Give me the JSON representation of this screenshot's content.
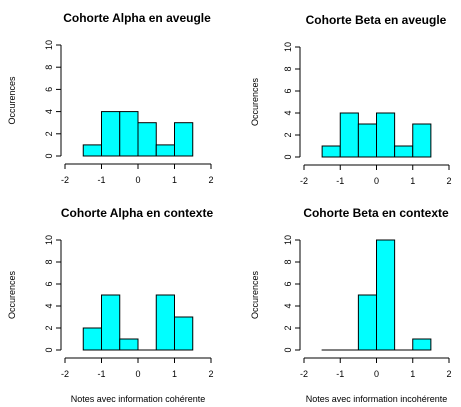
{
  "colors": {
    "bar_fill": "#00FFFF",
    "bar_stroke": "#000000",
    "background": "#FFFFFF"
  },
  "chart_data": [
    {
      "type": "bar",
      "title": "Cohorte Alpha en aveugle",
      "xlabel": "",
      "ylabel": "Occurences",
      "bin_edges": [
        -1.5,
        -1.0,
        -0.5,
        0.0,
        0.5,
        1.0,
        1.5
      ],
      "values": [
        1,
        4,
        4,
        3,
        1,
        3
      ],
      "xlim": [
        -2,
        2
      ],
      "ylim": [
        0,
        10
      ],
      "xticks": [
        "-2",
        "-1",
        "0",
        "1",
        "2"
      ],
      "yticks": [
        "0",
        "2",
        "4",
        "6",
        "8",
        "10"
      ],
      "grid": false
    },
    {
      "type": "bar",
      "title": "Cohorte Beta en aveugle",
      "xlabel": "",
      "ylabel": "Occurences",
      "bin_edges": [
        -1.5,
        -1.0,
        -0.5,
        0.0,
        0.5,
        1.0,
        1.5
      ],
      "values": [
        1,
        4,
        3,
        4,
        1,
        3
      ],
      "xlim": [
        -2,
        2
      ],
      "ylim": [
        0,
        10
      ],
      "xticks": [
        "-2",
        "-1",
        "0",
        "1",
        "2"
      ],
      "yticks": [
        "0",
        "2",
        "4",
        "6",
        "8",
        "10"
      ],
      "grid": false
    },
    {
      "type": "bar",
      "title": "Cohorte Alpha en contexte",
      "xlabel": "Notes avec information cohérente",
      "ylabel": "Occurences",
      "bin_edges": [
        -1.5,
        -1.0,
        -0.5,
        0.0,
        0.5,
        1.0,
        1.5
      ],
      "values": [
        2,
        5,
        1,
        0,
        5,
        3
      ],
      "xlim": [
        -2,
        2
      ],
      "ylim": [
        0,
        10
      ],
      "xticks": [
        "-2",
        "-1",
        "0",
        "1",
        "2"
      ],
      "yticks": [
        "0",
        "2",
        "4",
        "6",
        "8",
        "10"
      ],
      "grid": false
    },
    {
      "type": "bar",
      "title": "Cohorte Beta en contexte",
      "xlabel": "Notes avec information incohérente",
      "ylabel": "Occurences",
      "bin_edges": [
        -1.5,
        -1.0,
        -0.5,
        0.0,
        0.5,
        1.0,
        1.5
      ],
      "values": [
        0,
        0,
        5,
        10,
        0,
        1
      ],
      "xlim": [
        -2,
        2
      ],
      "ylim": [
        0,
        10
      ],
      "xticks": [
        "-2",
        "-1",
        "0",
        "1",
        "2"
      ],
      "yticks": [
        "0",
        "2",
        "4",
        "6",
        "8",
        "10"
      ],
      "grid": false
    }
  ]
}
